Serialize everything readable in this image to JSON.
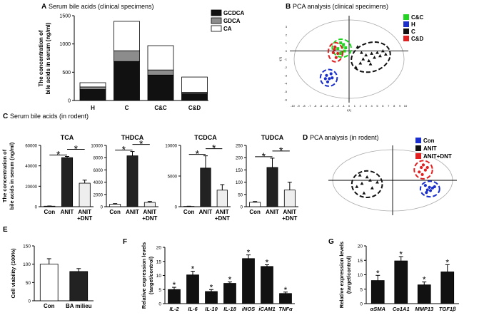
{
  "panels": {
    "A": {
      "letter": "A",
      "title": "Serum bile acids  (clinical specimens)"
    },
    "B": {
      "letter": "B",
      "title": "PCA analysis (clinical specimens)"
    },
    "C": {
      "letter": "C",
      "title": "Serum bile acids (in rodent)"
    },
    "D": {
      "letter": "D",
      "title": "PCA analysis (in rodent)"
    },
    "E": {
      "letter": "E"
    },
    "F": {
      "letter": "F"
    },
    "G": {
      "letter": "G"
    }
  },
  "colors": {
    "black": "#111111",
    "gray": "#8c8c8c",
    "white": "#ffffff",
    "light": "#eeeeee",
    "green": "#22d422",
    "blue": "#1a2fcc",
    "red": "#e02020"
  },
  "chart_data": [
    {
      "id": "A",
      "type": "bar",
      "stacked": true,
      "title": "Serum bile acids  (clinical specimens)",
      "ylabel": "The concentration of bile acids in serum (ng/ml)",
      "ylim": [
        0,
        1500
      ],
      "yticks": [
        0,
        500,
        1000,
        1500
      ],
      "categories": [
        "H",
        "C",
        "C&C",
        "C&D"
      ],
      "series": [
        {
          "name": "GCDCA",
          "values": [
            195,
            690,
            450,
            120
          ]
        },
        {
          "name": "GDCA",
          "values": [
            45,
            190,
            90,
            25
          ]
        },
        {
          "name": "CA",
          "values": [
            75,
            520,
            430,
            270
          ]
        }
      ]
    },
    {
      "id": "B",
      "type": "scatter",
      "title": "PCA analysis (clinical specimens)",
      "xlabel": "t[1]",
      "ylabel": "t[2]",
      "xlim": [
        -10,
        10
      ],
      "ylim": [
        -6,
        4
      ],
      "xticks": [
        -10,
        -9,
        -8,
        -7,
        -6,
        -5,
        -4,
        -3,
        -2,
        -1,
        0,
        1,
        2,
        3,
        4,
        5,
        6,
        7,
        8,
        9,
        10
      ],
      "yticks": [
        3,
        2,
        1,
        0,
        -1,
        -2,
        -3,
        -4,
        -5,
        -6
      ],
      "legend": [
        "C&C",
        "H",
        "C",
        "C&D"
      ],
      "series": [
        {
          "name": "C&C",
          "points": [
            [
              -1.5,
              1.0
            ],
            [
              -1.2,
              0.5
            ],
            [
              -0.8,
              0.0
            ],
            [
              -1.5,
              -0.3
            ],
            [
              -1.0,
              0.8
            ],
            [
              -2.0,
              0.3
            ],
            [
              -1.3,
              -0.2
            ],
            [
              -0.6,
              0.4
            ]
          ]
        },
        {
          "name": "H",
          "points": [
            [
              -4.0,
              -3.0
            ],
            [
              -3.5,
              -3.4
            ],
            [
              -3.2,
              -2.8
            ],
            [
              -3.8,
              -3.8
            ],
            [
              -3.0,
              -3.3
            ],
            [
              -4.2,
              -3.4
            ]
          ]
        },
        {
          "name": "C",
          "points": [
            [
              1.2,
              -2.0
            ],
            [
              2.0,
              -1.5
            ],
            [
              2.5,
              -1.0
            ],
            [
              3.0,
              -0.5
            ],
            [
              3.5,
              -1.2
            ],
            [
              4.0,
              -0.3
            ],
            [
              4.5,
              -0.8
            ],
            [
              5.0,
              -0.2
            ],
            [
              5.5,
              -0.6
            ],
            [
              6.0,
              0.0
            ],
            [
              6.5,
              -0.4
            ],
            [
              2.2,
              -0.2
            ],
            [
              3.8,
              -1.6
            ],
            [
              1.5,
              0.5
            ]
          ]
        },
        {
          "name": "C&D",
          "points": [
            [
              -2.5,
              0.5
            ],
            [
              -2.8,
              -0.2
            ],
            [
              -2.3,
              -0.8
            ],
            [
              -2.0,
              -0.3
            ],
            [
              -2.6,
              0.2
            ]
          ]
        }
      ]
    },
    {
      "id": "C1",
      "type": "bar",
      "title": "TCA",
      "ylabel": "The concentration of bile acids in serum (ng/ml)",
      "ylim": [
        0,
        60000
      ],
      "yticks": [
        0,
        20000,
        40000,
        60000
      ],
      "categories": [
        "Con",
        "ANIT",
        "ANIT +DNT"
      ],
      "values": [
        500,
        48000,
        23000
      ],
      "errors": [
        200,
        1200,
        3000
      ],
      "annotations": [
        "*",
        "*"
      ]
    },
    {
      "id": "C2",
      "type": "bar",
      "title": "THDCA",
      "ylim": [
        0,
        10000
      ],
      "yticks": [
        0,
        2000,
        4000,
        6000,
        8000,
        10000
      ],
      "categories": [
        "Con",
        "ANIT",
        "ANIT +DNT"
      ],
      "values": [
        400,
        8300,
        700
      ],
      "errors": [
        100,
        700,
        150
      ],
      "annotations": [
        "*",
        "*"
      ]
    },
    {
      "id": "C3",
      "type": "bar",
      "title": "TCDCA",
      "ylim": [
        0,
        10000
      ],
      "yticks": [
        0,
        5000,
        10000
      ],
      "categories": [
        "Con",
        "ANIT",
        "ANIT +DNT"
      ],
      "values": [
        50,
        6300,
        2700
      ],
      "errors": [
        30,
        2000,
        900
      ],
      "annotations": [
        "*",
        "*"
      ]
    },
    {
      "id": "C4",
      "type": "bar",
      "title": "TUDCA",
      "ylim": [
        0,
        250
      ],
      "yticks": [
        0,
        50,
        100,
        150,
        200,
        250
      ],
      "categories": [
        "Con",
        "ANIT",
        "ANIT +DNT"
      ],
      "values": [
        18,
        160,
        68
      ],
      "errors": [
        3,
        38,
        32
      ],
      "annotations": [
        "*",
        "*"
      ]
    },
    {
      "id": "D",
      "type": "scatter",
      "title": "PCA analysis (in rodent)",
      "xlim": [
        -6,
        6
      ],
      "ylim": [
        -5,
        5
      ],
      "legend": [
        "Con",
        "ANIT",
        "ANIT+DNT"
      ],
      "series": [
        {
          "name": "Con",
          "points": [
            [
              3.2,
              -0.8
            ],
            [
              3.6,
              -1.1
            ],
            [
              3.4,
              -1.5
            ],
            [
              3.9,
              -1.2
            ],
            [
              3.3,
              -1.9
            ],
            [
              3.7,
              -1.6
            ],
            [
              4.1,
              -1.0
            ]
          ]
        },
        {
          "name": "ANIT",
          "points": [
            [
              -2.5,
              0.5
            ],
            [
              -3.0,
              -0.5
            ],
            [
              -2.0,
              -1.2
            ],
            [
              -3.5,
              -1.0
            ],
            [
              -2.8,
              -2.0
            ],
            [
              -1.5,
              -0.3
            ],
            [
              -2.2,
              0.0
            ],
            [
              -3.2,
              0.8
            ]
          ]
        },
        {
          "name": "ANIT+DNT",
          "points": [
            [
              2.8,
              2.0
            ],
            [
              3.2,
              1.6
            ],
            [
              2.6,
              1.3
            ],
            [
              3.0,
              2.4
            ],
            [
              3.4,
              2.0
            ],
            [
              2.9,
              0.9
            ]
          ]
        }
      ]
    },
    {
      "id": "E",
      "type": "bar",
      "ylabel": "Cell viability (100%)",
      "ylim": [
        0,
        150
      ],
      "yticks": [
        0,
        50,
        100,
        150
      ],
      "categories": [
        "Con",
        "BA milieu"
      ],
      "values": [
        100,
        80
      ],
      "errors": [
        15,
        8
      ]
    },
    {
      "id": "F",
      "type": "bar",
      "ylabel": "Relative expression levels (target/control)",
      "ylim": [
        0,
        20
      ],
      "yticks": [
        0,
        5,
        10,
        15,
        20
      ],
      "categories": [
        "IL-2",
        "IL-6",
        "IL-10",
        "IL-18",
        "iNOS",
        "iCAM1",
        "TNFα"
      ],
      "values": [
        5.0,
        10.2,
        4.3,
        7.2,
        16.0,
        13.2,
        3.6
      ],
      "errors": [
        0.8,
        1.3,
        0.7,
        0.5,
        1.3,
        0.6,
        0.5
      ],
      "annotations": [
        "*",
        "*",
        "*",
        "*",
        "*",
        "*",
        "*"
      ]
    },
    {
      "id": "G",
      "type": "bar",
      "ylabel": "Relative expression levels (target/control)",
      "ylim": [
        0,
        20
      ],
      "yticks": [
        0,
        5,
        10,
        15,
        20
      ],
      "categories": [
        "αSMA",
        "Co1A1",
        "MMP13",
        "TGF1β"
      ],
      "values": [
        8.0,
        14.8,
        6.5,
        11.0
      ],
      "errors": [
        1.8,
        1.5,
        1.0,
        2.5
      ],
      "annotations": [
        "*",
        "*",
        "*",
        "*"
      ]
    }
  ]
}
